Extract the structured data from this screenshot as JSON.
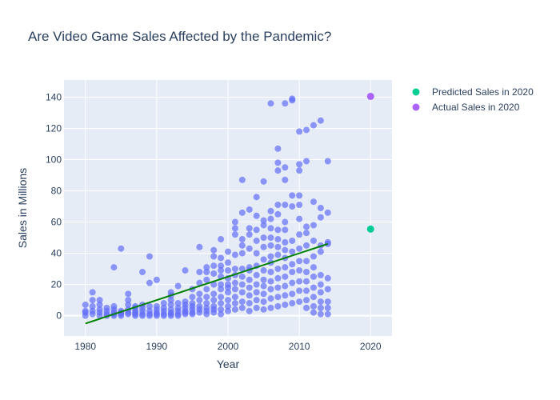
{
  "chart_data": {
    "type": "scatter",
    "title": "Are Video Game Sales Affected by the Pandemic?",
    "xlabel": "Year",
    "ylabel": "Sales in Millions",
    "xlim": [
      1977,
      2023
    ],
    "ylim": [
      -13,
      151
    ],
    "x_ticks": [
      1980,
      1990,
      2000,
      2010,
      2020
    ],
    "y_ticks": [
      0,
      20,
      40,
      60,
      80,
      100,
      120,
      140
    ],
    "grid": true,
    "legend_position": "top-right",
    "colors": {
      "background": "#e5ecf6",
      "historical_points": "#636efa",
      "trend_line": "#008000",
      "predicted": "#00cc96",
      "actual": "#ab63fa"
    },
    "series": [
      {
        "key": "historical",
        "points": [
          [
            1980,
            0
          ],
          [
            1980,
            2
          ],
          [
            1980,
            3
          ],
          [
            1980,
            7
          ],
          [
            1981,
            1
          ],
          [
            1981,
            3
          ],
          [
            1981,
            6
          ],
          [
            1981,
            10
          ],
          [
            1981,
            15
          ],
          [
            1982,
            0
          ],
          [
            1982,
            2
          ],
          [
            1982,
            4
          ],
          [
            1982,
            7
          ],
          [
            1982,
            10
          ],
          [
            1983,
            0
          ],
          [
            1983,
            1
          ],
          [
            1983,
            3
          ],
          [
            1983,
            5
          ],
          [
            1984,
            0
          ],
          [
            1984,
            1
          ],
          [
            1984,
            2
          ],
          [
            1984,
            4
          ],
          [
            1984,
            6
          ],
          [
            1984,
            31
          ],
          [
            1985,
            0
          ],
          [
            1985,
            1
          ],
          [
            1985,
            2
          ],
          [
            1985,
            3
          ],
          [
            1985,
            43
          ],
          [
            1986,
            1
          ],
          [
            1986,
            2
          ],
          [
            1986,
            4
          ],
          [
            1986,
            7
          ],
          [
            1986,
            10
          ],
          [
            1986,
            14
          ],
          [
            1987,
            0
          ],
          [
            1987,
            1
          ],
          [
            1987,
            2
          ],
          [
            1987,
            3
          ],
          [
            1987,
            5
          ],
          [
            1987,
            6
          ],
          [
            1988,
            0
          ],
          [
            1988,
            1
          ],
          [
            1988,
            3
          ],
          [
            1988,
            5
          ],
          [
            1988,
            7
          ],
          [
            1988,
            28
          ],
          [
            1989,
            0
          ],
          [
            1989,
            1
          ],
          [
            1989,
            3
          ],
          [
            1989,
            6
          ],
          [
            1989,
            21
          ],
          [
            1989,
            38
          ],
          [
            1990,
            0
          ],
          [
            1990,
            1
          ],
          [
            1990,
            2
          ],
          [
            1990,
            4
          ],
          [
            1990,
            6
          ],
          [
            1990,
            23
          ],
          [
            1991,
            0
          ],
          [
            1991,
            1
          ],
          [
            1991,
            3
          ],
          [
            1991,
            5
          ],
          [
            1991,
            8
          ],
          [
            1992,
            0
          ],
          [
            1992,
            1
          ],
          [
            1992,
            2
          ],
          [
            1992,
            4
          ],
          [
            1992,
            7
          ],
          [
            1992,
            10
          ],
          [
            1992,
            13
          ],
          [
            1992,
            15
          ],
          [
            1993,
            0
          ],
          [
            1993,
            1
          ],
          [
            1993,
            3
          ],
          [
            1993,
            5
          ],
          [
            1993,
            8
          ],
          [
            1993,
            19
          ],
          [
            1994,
            1
          ],
          [
            1994,
            2
          ],
          [
            1994,
            3
          ],
          [
            1994,
            5
          ],
          [
            1994,
            7
          ],
          [
            1994,
            9
          ],
          [
            1994,
            29
          ],
          [
            1995,
            1
          ],
          [
            1995,
            2
          ],
          [
            1995,
            4
          ],
          [
            1995,
            6
          ],
          [
            1995,
            8
          ],
          [
            1995,
            12
          ],
          [
            1995,
            17
          ],
          [
            1996,
            2
          ],
          [
            1996,
            4
          ],
          [
            1996,
            6
          ],
          [
            1996,
            10
          ],
          [
            1996,
            14
          ],
          [
            1996,
            21
          ],
          [
            1996,
            28
          ],
          [
            1996,
            44
          ],
          [
            1997,
            1
          ],
          [
            1997,
            3
          ],
          [
            1997,
            5
          ],
          [
            1997,
            8
          ],
          [
            1997,
            12
          ],
          [
            1997,
            17
          ],
          [
            1997,
            23
          ],
          [
            1997,
            28
          ],
          [
            1997,
            31
          ],
          [
            1998,
            2
          ],
          [
            1998,
            4
          ],
          [
            1998,
            6
          ],
          [
            1998,
            10
          ],
          [
            1998,
            14
          ],
          [
            1998,
            20
          ],
          [
            1998,
            27
          ],
          [
            1998,
            32
          ],
          [
            1998,
            38
          ],
          [
            1998,
            42
          ],
          [
            1999,
            1
          ],
          [
            1999,
            4
          ],
          [
            1999,
            8
          ],
          [
            1999,
            12
          ],
          [
            1999,
            17
          ],
          [
            1999,
            20
          ],
          [
            1999,
            25
          ],
          [
            1999,
            29
          ],
          [
            1999,
            32
          ],
          [
            1999,
            37
          ],
          [
            1999,
            49
          ],
          [
            2000,
            3
          ],
          [
            2000,
            6
          ],
          [
            2000,
            10
          ],
          [
            2000,
            15
          ],
          [
            2000,
            18
          ],
          [
            2000,
            20
          ],
          [
            2000,
            24
          ],
          [
            2000,
            29
          ],
          [
            2000,
            34
          ],
          [
            2000,
            41
          ],
          [
            2001,
            4
          ],
          [
            2001,
            8
          ],
          [
            2001,
            12
          ],
          [
            2001,
            17
          ],
          [
            2001,
            21
          ],
          [
            2001,
            26
          ],
          [
            2001,
            30
          ],
          [
            2001,
            39
          ],
          [
            2001,
            52
          ],
          [
            2001,
            56
          ],
          [
            2001,
            60
          ],
          [
            2002,
            5
          ],
          [
            2002,
            9
          ],
          [
            2002,
            15
          ],
          [
            2002,
            20
          ],
          [
            2002,
            25
          ],
          [
            2002,
            30
          ],
          [
            2002,
            40
          ],
          [
            2002,
            45
          ],
          [
            2002,
            49
          ],
          [
            2002,
            66
          ],
          [
            2002,
            87
          ],
          [
            2003,
            3
          ],
          [
            2003,
            8
          ],
          [
            2003,
            13
          ],
          [
            2003,
            18
          ],
          [
            2003,
            23
          ],
          [
            2003,
            29
          ],
          [
            2003,
            31
          ],
          [
            2003,
            43
          ],
          [
            2003,
            52
          ],
          [
            2003,
            56
          ],
          [
            2003,
            68
          ],
          [
            2004,
            5
          ],
          [
            2004,
            10
          ],
          [
            2004,
            15
          ],
          [
            2004,
            20
          ],
          [
            2004,
            26
          ],
          [
            2004,
            32
          ],
          [
            2004,
            40
          ],
          [
            2004,
            48
          ],
          [
            2004,
            55
          ],
          [
            2004,
            64
          ],
          [
            2004,
            76
          ],
          [
            2005,
            4
          ],
          [
            2005,
            9
          ],
          [
            2005,
            14
          ],
          [
            2005,
            19
          ],
          [
            2005,
            23
          ],
          [
            2005,
            29
          ],
          [
            2005,
            36
          ],
          [
            2005,
            44
          ],
          [
            2005,
            50
          ],
          [
            2005,
            58
          ],
          [
            2005,
            61
          ],
          [
            2005,
            86
          ],
          [
            2006,
            5
          ],
          [
            2006,
            11
          ],
          [
            2006,
            17
          ],
          [
            2006,
            22
          ],
          [
            2006,
            28
          ],
          [
            2006,
            34
          ],
          [
            2006,
            38
          ],
          [
            2006,
            45
          ],
          [
            2006,
            50
          ],
          [
            2006,
            56
          ],
          [
            2006,
            62
          ],
          [
            2006,
            67
          ],
          [
            2006,
            136
          ],
          [
            2007,
            6
          ],
          [
            2007,
            12
          ],
          [
            2007,
            18
          ],
          [
            2007,
            24
          ],
          [
            2007,
            30
          ],
          [
            2007,
            39
          ],
          [
            2007,
            44
          ],
          [
            2007,
            49
          ],
          [
            2007,
            55
          ],
          [
            2007,
            65
          ],
          [
            2007,
            71
          ],
          [
            2007,
            93
          ],
          [
            2007,
            98
          ],
          [
            2007,
            107
          ],
          [
            2008,
            7
          ],
          [
            2008,
            13
          ],
          [
            2008,
            19
          ],
          [
            2008,
            25
          ],
          [
            2008,
            31
          ],
          [
            2008,
            37
          ],
          [
            2008,
            42
          ],
          [
            2008,
            47
          ],
          [
            2008,
            55
          ],
          [
            2008,
            60
          ],
          [
            2008,
            71
          ],
          [
            2008,
            87
          ],
          [
            2008,
            95
          ],
          [
            2008,
            136
          ],
          [
            2009,
            8
          ],
          [
            2009,
            14
          ],
          [
            2009,
            21
          ],
          [
            2009,
            28
          ],
          [
            2009,
            33
          ],
          [
            2009,
            41
          ],
          [
            2009,
            48
          ],
          [
            2009,
            70
          ],
          [
            2009,
            77
          ],
          [
            2009,
            138
          ],
          [
            2009,
            139
          ],
          [
            2010,
            9
          ],
          [
            2010,
            16
          ],
          [
            2010,
            22
          ],
          [
            2010,
            29
          ],
          [
            2010,
            35
          ],
          [
            2010,
            43
          ],
          [
            2010,
            52
          ],
          [
            2010,
            62
          ],
          [
            2010,
            71
          ],
          [
            2010,
            77
          ],
          [
            2010,
            93
          ],
          [
            2010,
            97
          ],
          [
            2010,
            118
          ],
          [
            2011,
            5
          ],
          [
            2011,
            10
          ],
          [
            2011,
            16
          ],
          [
            2011,
            22
          ],
          [
            2011,
            28
          ],
          [
            2011,
            35
          ],
          [
            2011,
            45
          ],
          [
            2011,
            53
          ],
          [
            2011,
            57
          ],
          [
            2011,
            99
          ],
          [
            2011,
            119
          ],
          [
            2012,
            2
          ],
          [
            2012,
            6
          ],
          [
            2012,
            12
          ],
          [
            2012,
            18
          ],
          [
            2012,
            25
          ],
          [
            2012,
            31
          ],
          [
            2012,
            38
          ],
          [
            2012,
            48
          ],
          [
            2012,
            58
          ],
          [
            2012,
            73
          ],
          [
            2012,
            122
          ],
          [
            2013,
            1
          ],
          [
            2013,
            5
          ],
          [
            2013,
            9
          ],
          [
            2013,
            15
          ],
          [
            2013,
            20
          ],
          [
            2013,
            26
          ],
          [
            2013,
            41
          ],
          [
            2013,
            45
          ],
          [
            2013,
            63
          ],
          [
            2013,
            69
          ],
          [
            2013,
            125
          ],
          [
            2014,
            1
          ],
          [
            2014,
            5
          ],
          [
            2014,
            9
          ],
          [
            2014,
            17
          ],
          [
            2014,
            24
          ],
          [
            2014,
            46
          ],
          [
            2014,
            47
          ],
          [
            2014,
            66
          ],
          [
            2014,
            99
          ]
        ]
      },
      {
        "key": "trend",
        "x": [
          1980,
          2014
        ],
        "y": [
          -5,
          46
        ]
      },
      {
        "key": "predicted",
        "name": "Predicted Sales in 2020",
        "points": [
          [
            2020,
            55.5
          ]
        ]
      },
      {
        "key": "actual",
        "name": "Actual Sales in 2020",
        "points": [
          [
            2020,
            140.5
          ]
        ]
      }
    ]
  }
}
